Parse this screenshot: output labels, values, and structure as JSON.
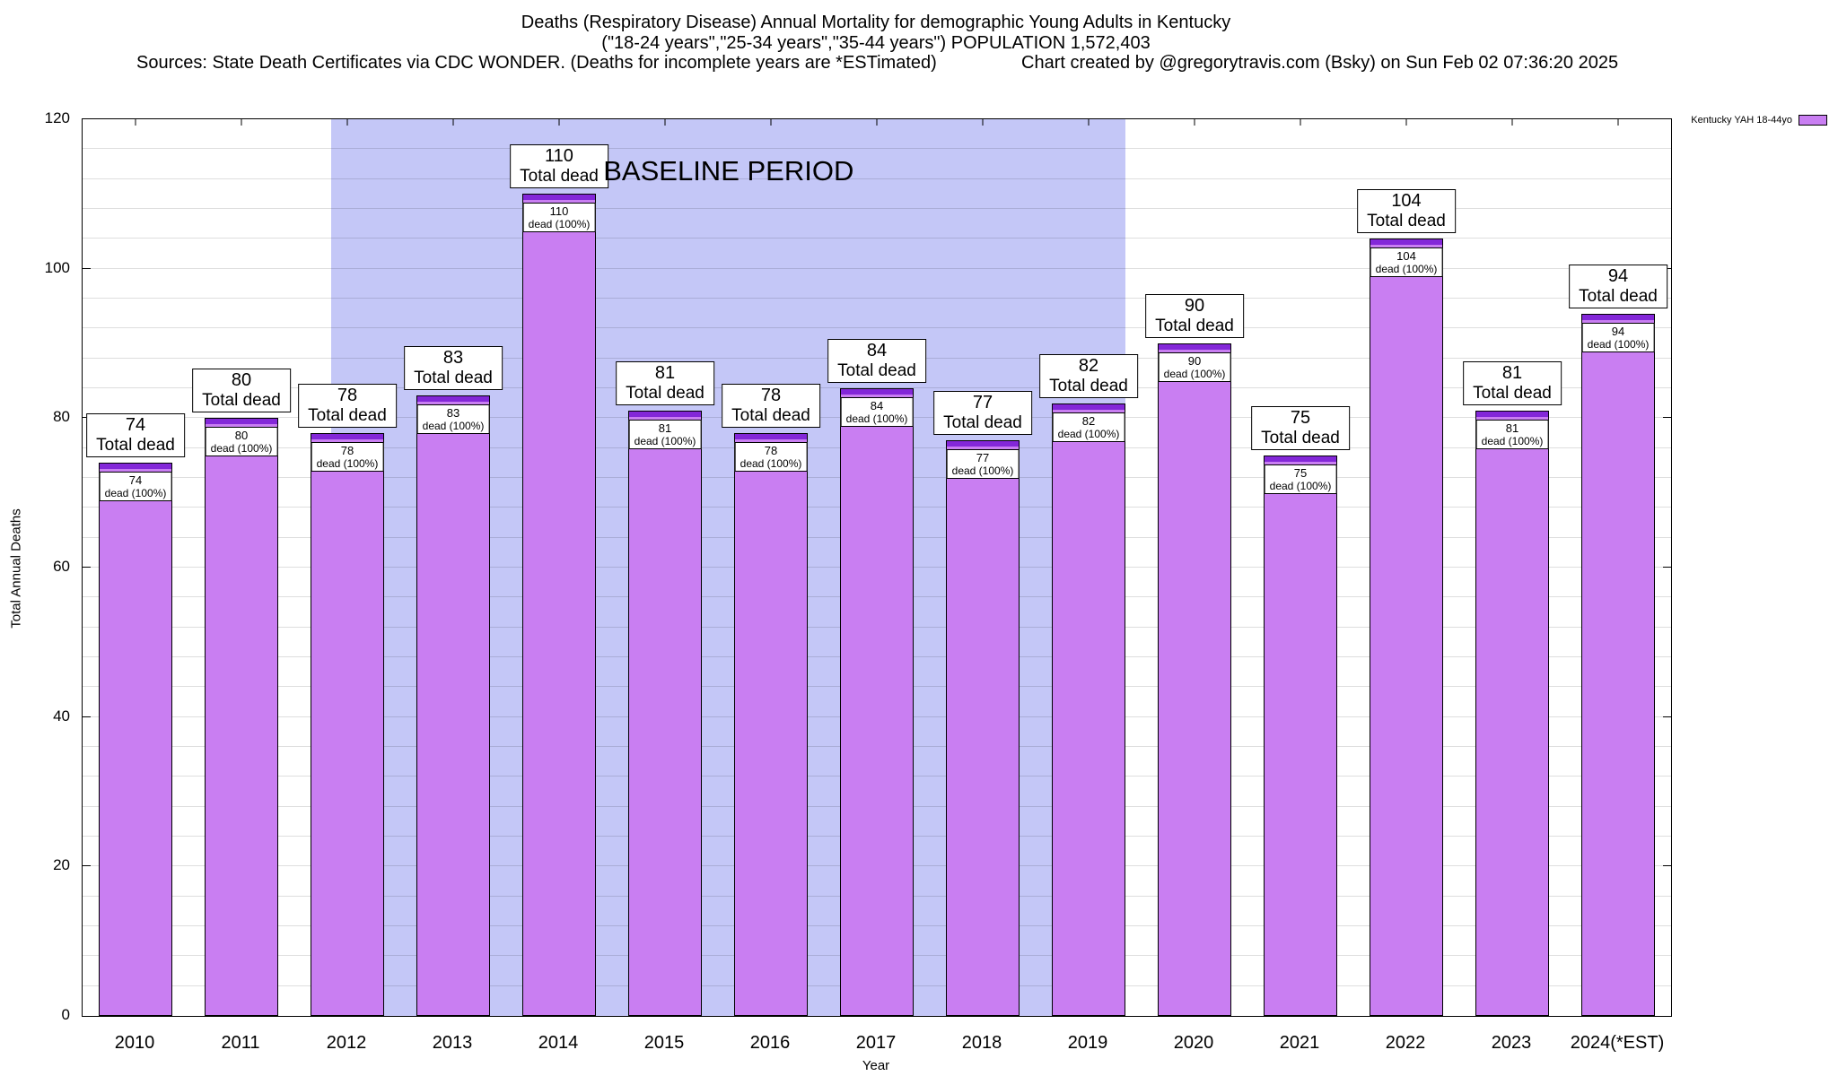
{
  "header": {
    "line1": "Deaths (Respiratory Disease) Annual Mortality for demographic Young Adults in Kentucky",
    "line2": "(\"18-24 years\",\"25-34 years\",\"35-44 years\") POPULATION 1,572,403",
    "sources": "Sources: State Death Certificates via CDC WONDER. (Deaths for incomplete years are *ESTimated)",
    "credit": "Chart created by @gregorytravis.com (Bsky) on Sun Feb 02 07:36:20 2025"
  },
  "legend": {
    "label": "Kentucky YAH 18-44yo"
  },
  "chart_data": {
    "type": "bar",
    "title": "Deaths (Respiratory Disease) Annual Mortality for demographic Young Adults in Kentucky",
    "xlabel": "Year",
    "ylabel": "Total Annual Deaths",
    "ylim": [
      0,
      120
    ],
    "yticks": [
      0,
      20,
      40,
      60,
      80,
      100,
      120
    ],
    "gridline_step": 4,
    "categories": [
      "2010",
      "2011",
      "2012",
      "2013",
      "2014",
      "2015",
      "2016",
      "2017",
      "2018",
      "2019",
      "2020",
      "2021",
      "2022",
      "2023",
      "2024(*EST)"
    ],
    "values": [
      74,
      80,
      78,
      83,
      110,
      81,
      78,
      84,
      77,
      82,
      90,
      75,
      104,
      81,
      94
    ],
    "bar_label_top": "Total dead",
    "bar_label_inner": "dead (100%)",
    "bar_color": "#c97ef2",
    "bar_cap_color": "#8327d8",
    "bar_border_color": "#000000",
    "baseline": {
      "label": "BASELINE PERIOD",
      "start_category": "2012",
      "end_category": "2019",
      "color": "#c4c7f7"
    }
  }
}
